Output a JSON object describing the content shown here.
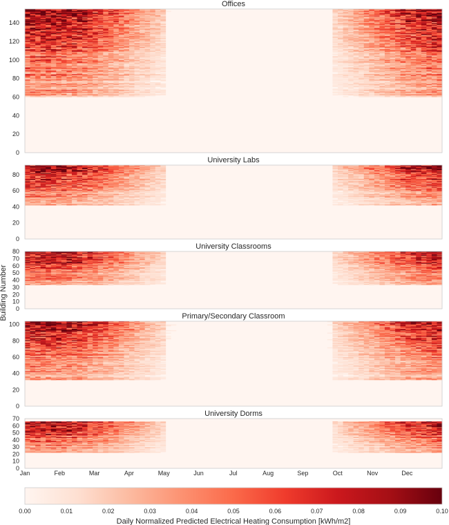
{
  "chart_data": {
    "type": "heatmap",
    "ylabel": "Building Number",
    "x_tick_labels": [
      "Jan",
      "Feb",
      "Mar",
      "Apr",
      "May",
      "Jun",
      "Jul",
      "Aug",
      "Sep",
      "Oct",
      "Nov",
      "Dec"
    ],
    "colorbar": {
      "label": "Daily Normalized Predicted Electrical Heating Consumption [kWh/m2]",
      "range": [
        0.0,
        0.1
      ],
      "ticks": [
        "0.00",
        "0.01",
        "0.02",
        "0.03",
        "0.04",
        "0.05",
        "0.06",
        "0.07",
        "0.08",
        "0.09",
        "0.10"
      ],
      "colormap": [
        "#fff5f0",
        "#fee0d2",
        "#fcbba1",
        "#fc9272",
        "#fb6a4a",
        "#ef3b2c",
        "#cb181d",
        "#a50f15",
        "#67000d"
      ]
    },
    "panels": [
      {
        "title": "Offices",
        "buildings": 155,
        "active_buildings": 95,
        "y_ticks": [
          0,
          20,
          40,
          60,
          80,
          100,
          120,
          140
        ],
        "ylim": [
          0,
          155
        ],
        "summer_intensity": 0.25
      },
      {
        "title": "University Labs",
        "buildings": 92,
        "active_buildings": 50,
        "y_ticks": [
          0,
          20,
          40,
          60,
          80
        ],
        "ylim": [
          0,
          92
        ],
        "summer_intensity": 0.2
      },
      {
        "title": "University Classrooms",
        "buildings": 80,
        "active_buildings": 47,
        "y_ticks": [
          0,
          10,
          20,
          30,
          40,
          50,
          60,
          70,
          80
        ],
        "ylim": [
          0,
          80
        ],
        "summer_intensity": 0.15
      },
      {
        "title": "Primary/Secondary Classroom",
        "buildings": 104,
        "active_buildings": 72,
        "y_ticks": [
          0,
          20,
          40,
          60,
          80,
          100
        ],
        "ylim": [
          0,
          104
        ],
        "summer_intensity": 0.45
      },
      {
        "title": "University Dorms",
        "buildings": 66,
        "active_buildings": 44,
        "y_ticks": [
          0,
          10,
          20,
          30,
          40,
          50,
          60,
          70
        ],
        "ylim": [
          0,
          70
        ],
        "summer_intensity": 0.3
      }
    ]
  }
}
